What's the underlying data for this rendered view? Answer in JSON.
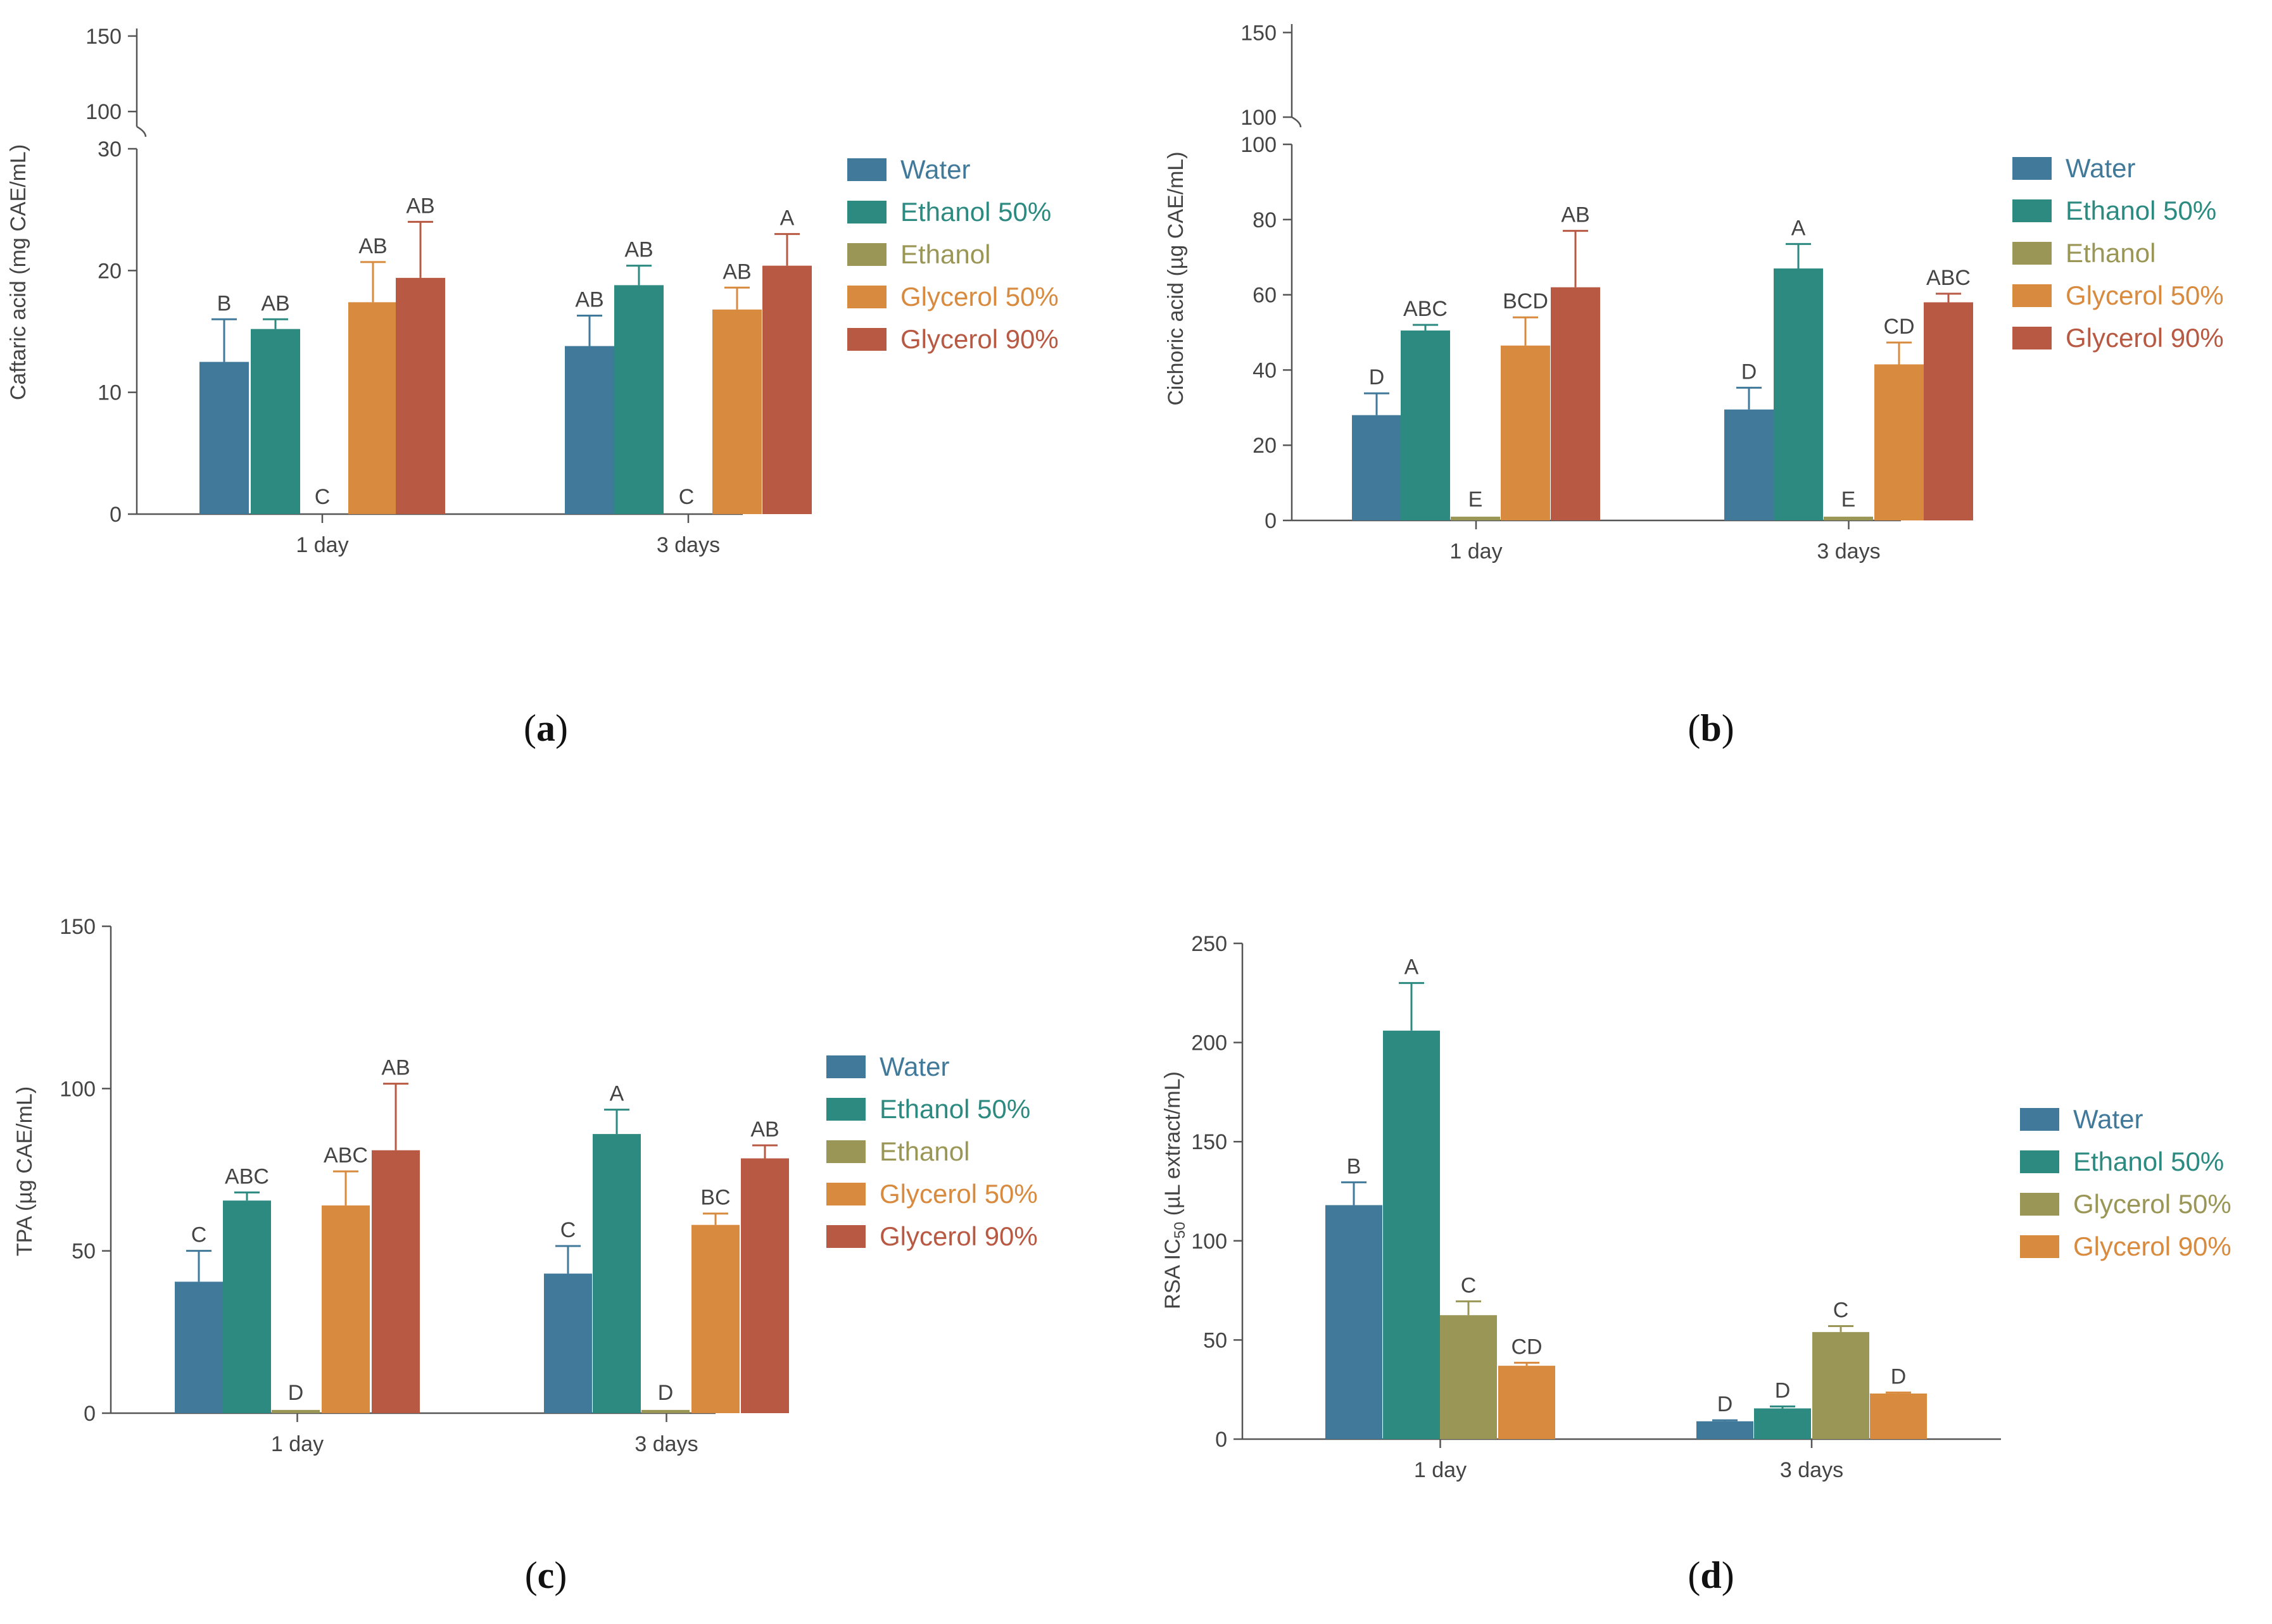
{
  "figure": {
    "series_colors": {
      "Water": "#41799a",
      "Ethanol 50%": "#2c8a80",
      "Ethanol": "#9a9656",
      "Glycerol 50%": "#d88a3e",
      "Glycerol 90%": "#b85943"
    },
    "axis_color": "#555555",
    "text_color": "#444444"
  },
  "chart_data": [
    {
      "panel": "(a)",
      "panel_letter": "a",
      "type": "bar",
      "ylabel": "Caftaric acid (mg CAE/mL)",
      "categories": [
        "1 day",
        "3 days"
      ],
      "ylim": [
        0,
        30
      ],
      "yticks": [
        0,
        10,
        20,
        30
      ],
      "upper_ylim": [
        90,
        155
      ],
      "upper_yticks": [
        100,
        150
      ],
      "legend_position": "right",
      "series": [
        {
          "name": "Water",
          "values": [
            12.5,
            13.8
          ],
          "errors": [
            3.5,
            2.5
          ],
          "letters": [
            "B",
            "AB"
          ]
        },
        {
          "name": "Ethanol 50%",
          "values": [
            15.2,
            18.8
          ],
          "errors": [
            0.8,
            1.6
          ],
          "letters": [
            "AB",
            "AB"
          ]
        },
        {
          "name": "Ethanol",
          "values": [
            0,
            0
          ],
          "errors": [
            0,
            0
          ],
          "letters": [
            "C",
            "C"
          ]
        },
        {
          "name": "Glycerol 50%",
          "values": [
            17.4,
            16.8
          ],
          "errors": [
            3.3,
            1.8
          ],
          "letters": [
            "AB",
            "AB"
          ]
        },
        {
          "name": "Glycerol 90%",
          "values": [
            19.4,
            20.4
          ],
          "errors": [
            4.6,
            2.6
          ],
          "letters": [
            "AB",
            "A"
          ]
        }
      ]
    },
    {
      "panel": "(b)",
      "panel_letter": "b",
      "type": "bar",
      "ylabel": "Cichoric acid (µg CAE/mL)",
      "categories": [
        "1 day",
        "3 days"
      ],
      "ylim": [
        0,
        100
      ],
      "yticks": [
        0,
        20,
        40,
        60,
        80,
        100
      ],
      "upper_ylim": [
        100,
        155
      ],
      "upper_yticks": [
        100,
        150
      ],
      "legend_position": "right",
      "series": [
        {
          "name": "Water",
          "values": [
            28,
            29.5
          ],
          "errors": [
            5.8,
            5.8
          ],
          "letters": [
            "D",
            "D"
          ]
        },
        {
          "name": "Ethanol 50%",
          "values": [
            50.5,
            67
          ],
          "errors": [
            1.5,
            6.5
          ],
          "letters": [
            "ABC",
            "A"
          ]
        },
        {
          "name": "Ethanol",
          "values": [
            1,
            1
          ],
          "errors": [
            0,
            0
          ],
          "letters": [
            "E",
            "E"
          ]
        },
        {
          "name": "Glycerol 50%",
          "values": [
            46.5,
            41.5
          ],
          "errors": [
            7.5,
            5.8
          ],
          "letters": [
            "BCD",
            "CD"
          ]
        },
        {
          "name": "Glycerol 90%",
          "values": [
            62,
            58
          ],
          "errors": [
            15,
            2.3
          ],
          "letters": [
            "AB",
            "ABC"
          ]
        }
      ]
    },
    {
      "panel": "(c)",
      "panel_letter": "c",
      "type": "bar",
      "ylabel": "TPA (µg CAE/mL)",
      "categories": [
        "1 day",
        "3 days"
      ],
      "ylim": [
        0,
        150
      ],
      "yticks": [
        0,
        50,
        100,
        150
      ],
      "legend_position": "right",
      "series": [
        {
          "name": "Water",
          "values": [
            40.5,
            43
          ],
          "errors": [
            9.5,
            8.5
          ],
          "letters": [
            "C",
            "C"
          ]
        },
        {
          "name": "Ethanol 50%",
          "values": [
            65.5,
            86
          ],
          "errors": [
            2.5,
            7.5
          ],
          "letters": [
            "ABC",
            "A"
          ]
        },
        {
          "name": "Ethanol",
          "values": [
            1,
            1
          ],
          "errors": [
            0,
            0
          ],
          "letters": [
            "D",
            "D"
          ]
        },
        {
          "name": "Glycerol 50%",
          "values": [
            64,
            58
          ],
          "errors": [
            10.5,
            3.5
          ],
          "letters": [
            "ABC",
            "BC"
          ]
        },
        {
          "name": "Glycerol 90%",
          "values": [
            81,
            78.5
          ],
          "errors": [
            20.5,
            4
          ],
          "letters": [
            "AB",
            "AB"
          ]
        }
      ]
    },
    {
      "panel": "(d)",
      "panel_letter": "d",
      "type": "bar",
      "ylabel": "RSA IC50 (µL extract/mL)",
      "ylabel_parts": {
        "before": "RSA IC",
        "subscript": "50",
        "after": " (µL extract/mL)"
      },
      "categories": [
        "1 day",
        "3 days"
      ],
      "ylim": [
        0,
        250
      ],
      "yticks": [
        0,
        50,
        100,
        150,
        200,
        250
      ],
      "legend_position": "right",
      "series": [
        {
          "name": "Water",
          "color": "#41799a",
          "values": [
            118,
            9
          ],
          "errors": [
            11.5,
            0.5
          ],
          "letters": [
            "B",
            "D"
          ]
        },
        {
          "name": "Ethanol 50%",
          "color": "#2c8a80",
          "values": [
            206,
            15.5
          ],
          "errors": [
            24,
            1
          ],
          "letters": [
            "A",
            "D"
          ]
        },
        {
          "name": "Glycerol 50%",
          "color": "#9a9656",
          "values": [
            62.5,
            54
          ],
          "errors": [
            7,
            3
          ],
          "letters": [
            "C",
            "C"
          ]
        },
        {
          "name": "Glycerol 90%",
          "color": "#d88a3e",
          "values": [
            37,
            23
          ],
          "errors": [
            1.5,
            0.5
          ],
          "letters": [
            "CD",
            "D"
          ]
        }
      ]
    }
  ]
}
